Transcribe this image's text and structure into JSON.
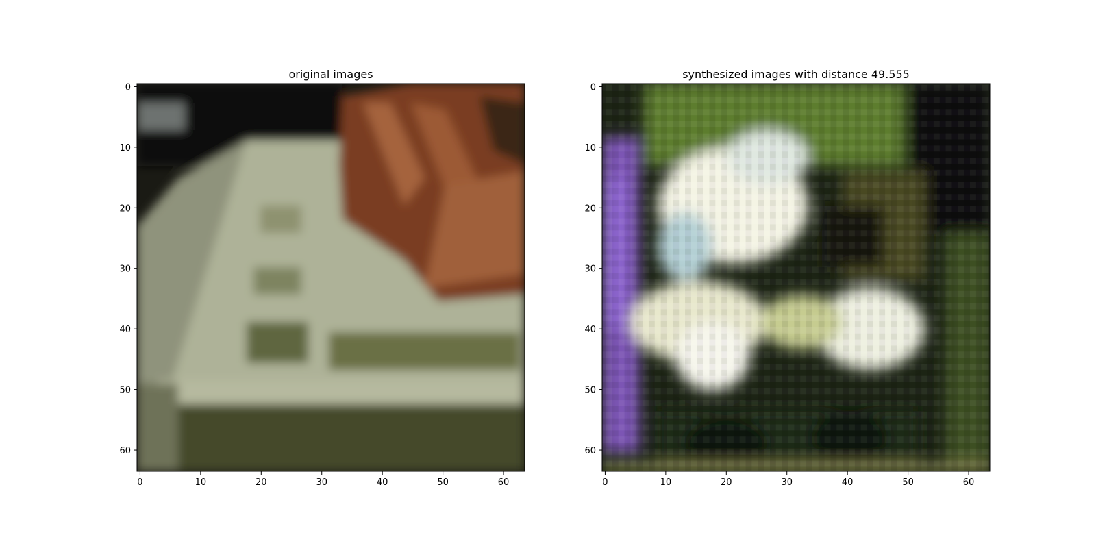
{
  "chart_data": [
    {
      "type": "image",
      "title": "original images",
      "xlim": [
        -0.5,
        63.5
      ],
      "ylim": [
        63.5,
        -0.5
      ],
      "xticks": [
        0,
        10,
        20,
        30,
        40,
        50,
        60
      ],
      "yticks": [
        0,
        10,
        20,
        30,
        40,
        50,
        60
      ],
      "grid": false,
      "description_colors": {
        "dark_background": "#141410",
        "keyboard": "#a9ad93",
        "keyboard_shadow": "#4f5532",
        "hand": "#8a4a2a",
        "bottom_base": "#3c4024"
      }
    },
    {
      "type": "image",
      "title": "synthesized images with distance 49.555",
      "xlim": [
        -0.5,
        63.5
      ],
      "ylim": [
        63.5,
        -0.5
      ],
      "xticks": [
        0,
        10,
        20,
        30,
        40,
        50,
        60
      ],
      "yticks": [
        0,
        10,
        20,
        30,
        40,
        50,
        60
      ],
      "grid": false,
      "description_colors": {
        "bright_blob": "#eef0dc",
        "green_texture": "#5a7a2a",
        "purple_edge": "#9a5ac8",
        "dark_area": "#101410"
      }
    }
  ]
}
